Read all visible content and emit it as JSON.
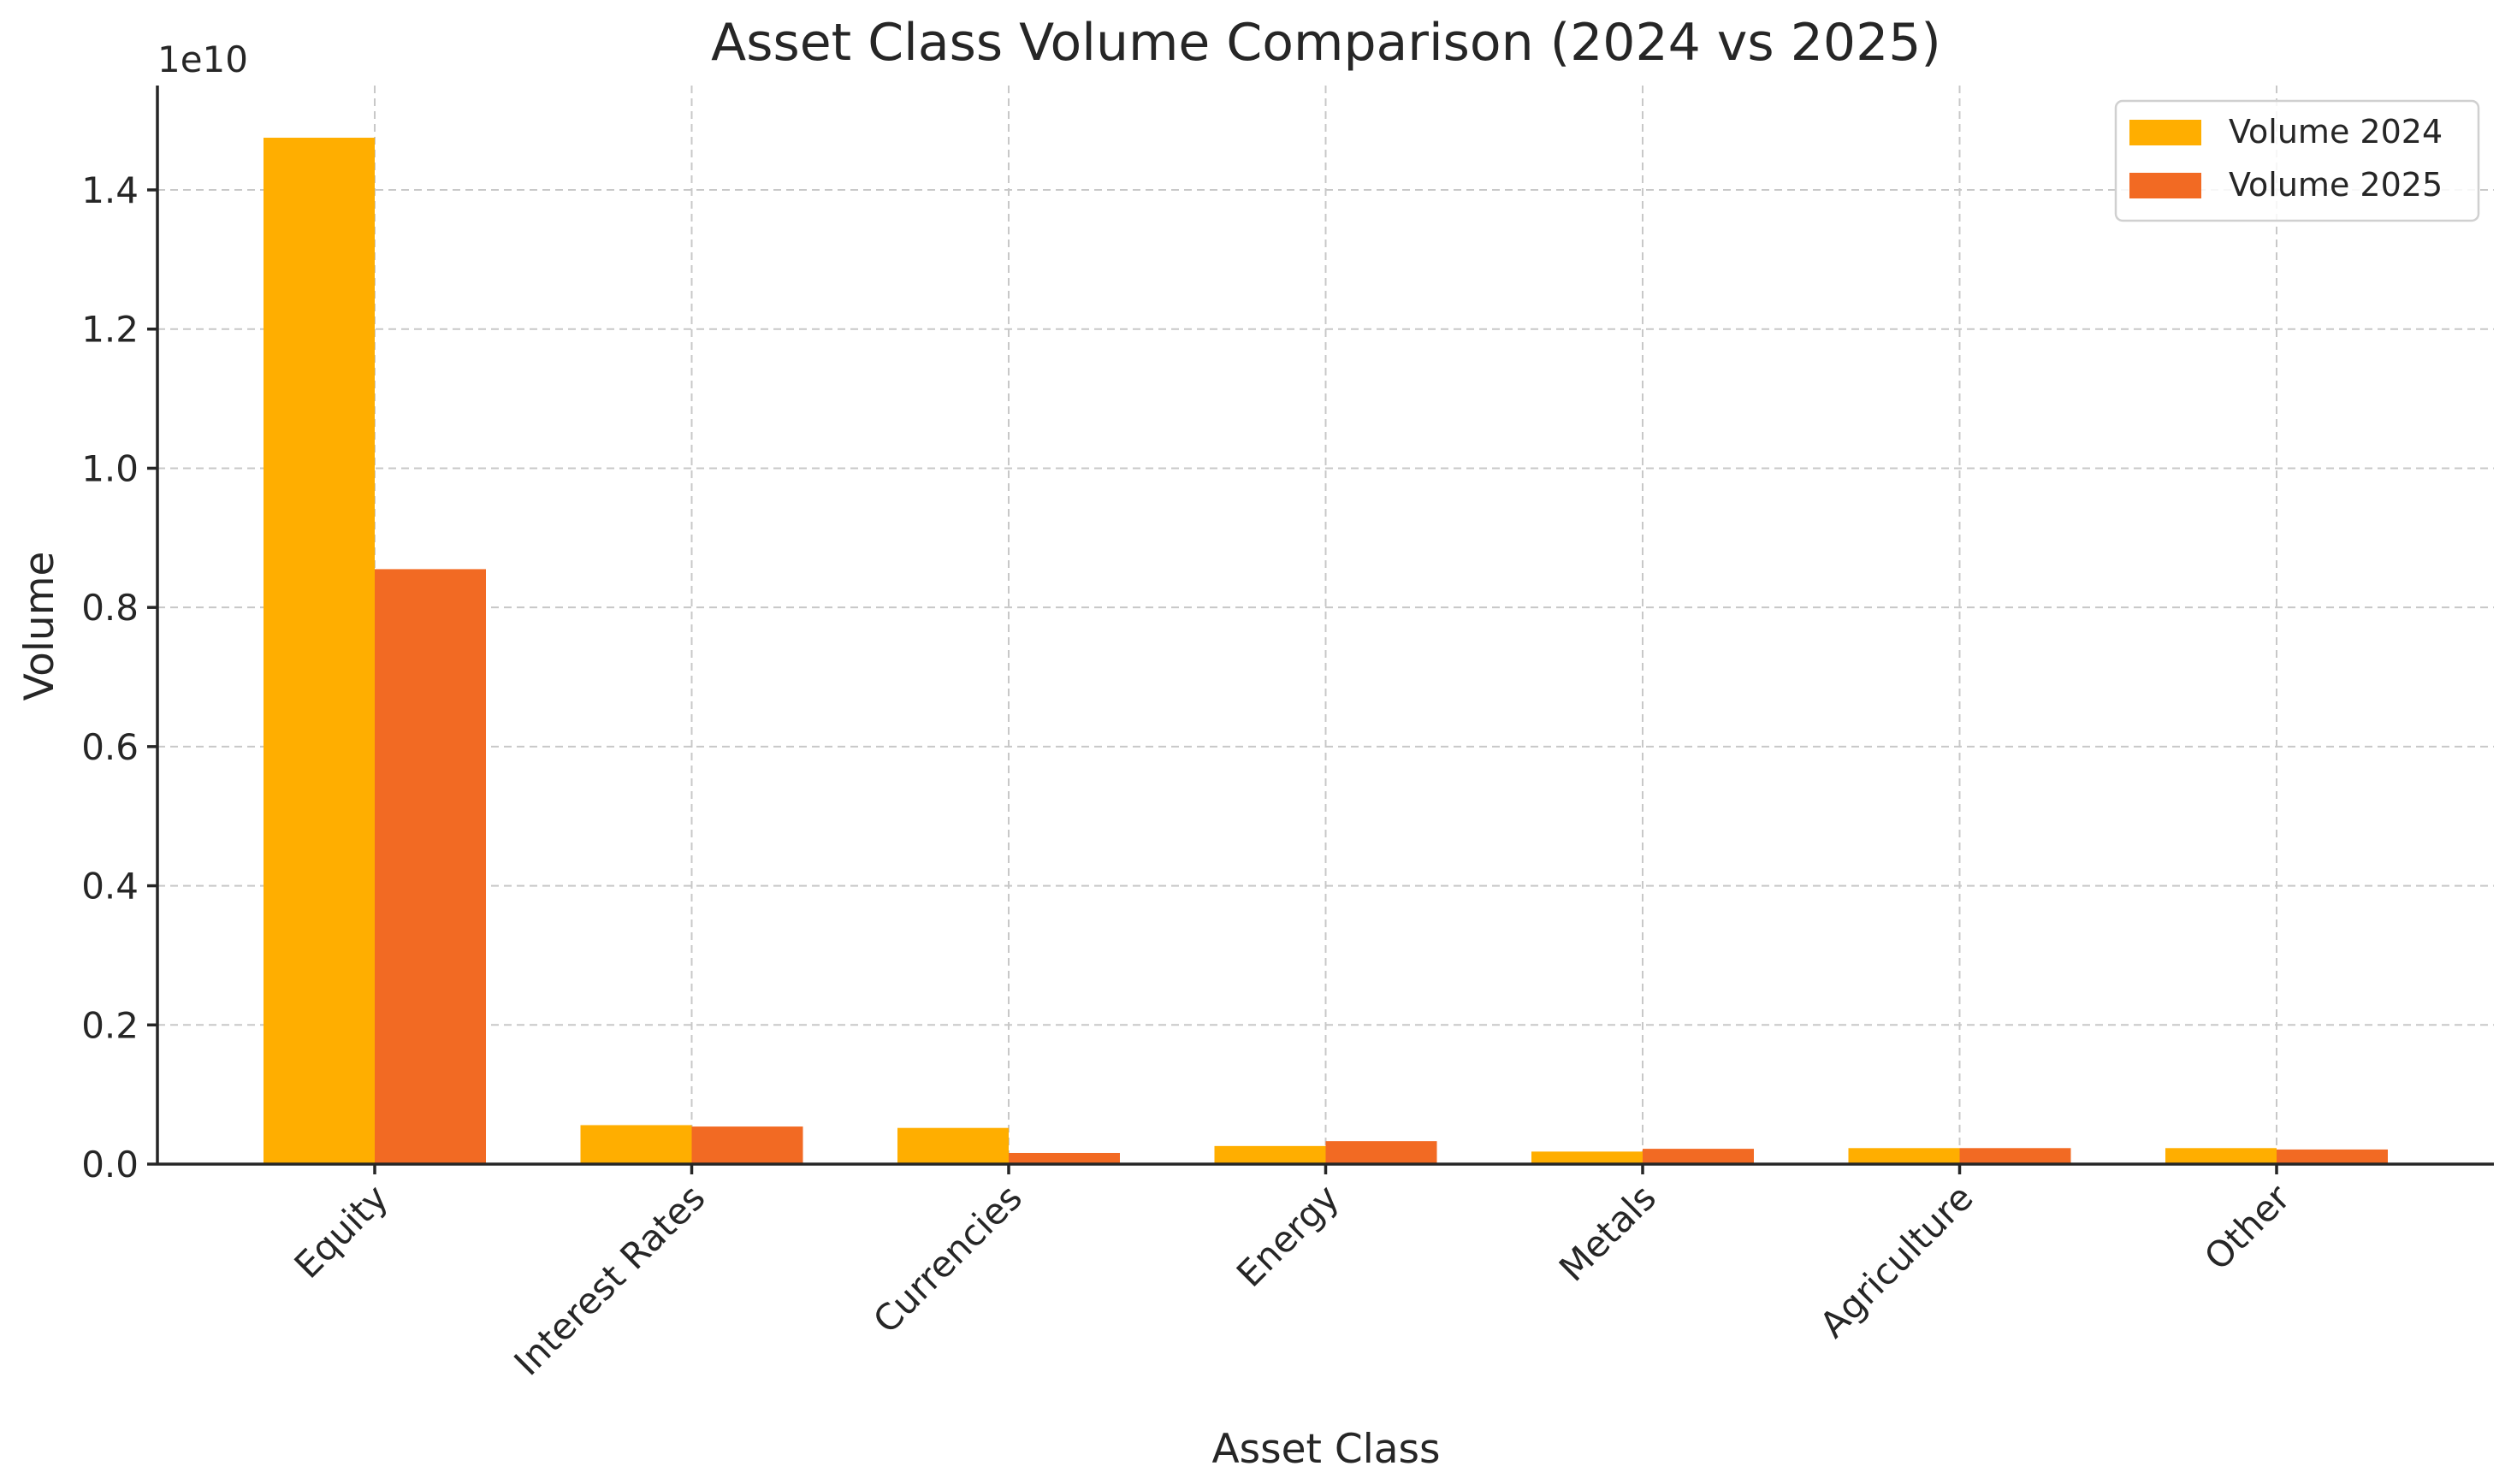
{
  "chart_data": {
    "type": "bar",
    "title": "Asset Class Volume Comparison (2024 vs 2025)",
    "xlabel": "Asset Class",
    "ylabel": "Volume",
    "y_offset_label": "1e10",
    "ylim": [
      0,
      15500000000
    ],
    "yticks": [
      0,
      2000000000,
      4000000000,
      6000000000,
      8000000000,
      10000000000,
      12000000000,
      14000000000
    ],
    "ytick_labels": [
      "0.0",
      "0.2",
      "0.4",
      "0.6",
      "0.8",
      "1.0",
      "1.2",
      "1.4"
    ],
    "categories": [
      "Equity",
      "Interest Rates",
      "Currencies",
      "Energy",
      "Metals",
      "Agriculture",
      "Other"
    ],
    "series": [
      {
        "name": "Volume 2024",
        "color": "#FFAE00",
        "values": [
          14750000000,
          560000000,
          520000000,
          260000000,
          180000000,
          230000000,
          230000000
        ]
      },
      {
        "name": "Volume 2025",
        "color": "#F26A23",
        "values": [
          8550000000,
          540000000,
          160000000,
          330000000,
          220000000,
          230000000,
          210000000
        ]
      }
    ],
    "grid": true,
    "legend_position": "top-right"
  }
}
